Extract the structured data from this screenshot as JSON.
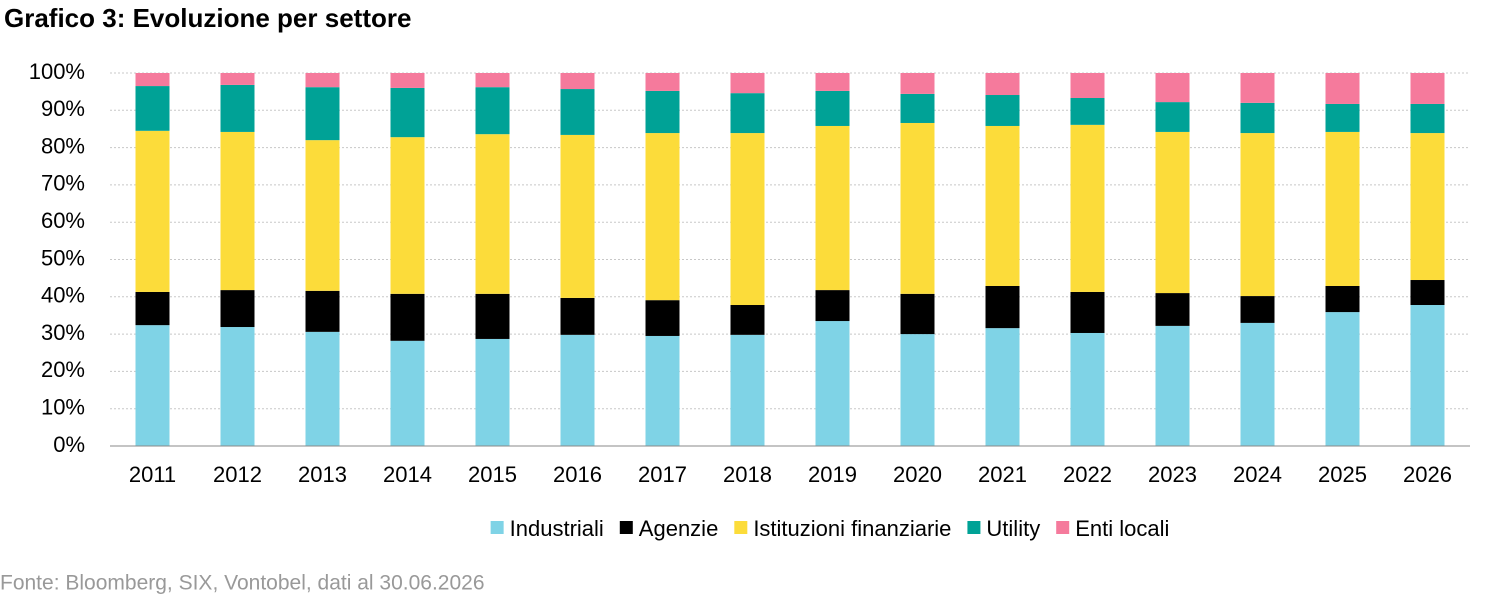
{
  "chart_data": {
    "type": "stacked_bar",
    "title": "Grafico 3: Evoluzione per settore",
    "source": "Fonte: Bloomberg, SIX, Vontobel, dati al 30.06.2026",
    "categories": [
      "2011",
      "2012",
      "2013",
      "2014",
      "2015",
      "2016",
      "2017",
      "2018",
      "2019",
      "2020",
      "2021",
      "2022",
      "2023",
      "2024",
      "2025",
      "2026"
    ],
    "series": [
      {
        "name": "Industriali",
        "color": "#7fd3e6",
        "values": [
          32.4,
          31.9,
          30.6,
          28.2,
          28.7,
          29.8,
          29.5,
          29.8,
          33.5,
          30.0,
          31.6,
          30.3,
          32.2,
          33.0,
          35.9,
          37.8
        ]
      },
      {
        "name": "Agenzie",
        "color": "#000000",
        "values": [
          8.9,
          9.9,
          11.0,
          12.6,
          12.1,
          9.9,
          9.6,
          8.0,
          8.3,
          10.8,
          11.3,
          11.0,
          8.8,
          7.2,
          7.0,
          6.7
        ]
      },
      {
        "name": "Istituzioni finanziarie",
        "color": "#fcdc3a",
        "values": [
          43.2,
          42.4,
          40.4,
          42.0,
          42.8,
          43.7,
          44.8,
          46.1,
          44.0,
          45.8,
          42.9,
          44.8,
          43.2,
          43.7,
          41.3,
          39.4
        ]
      },
      {
        "name": "Utility",
        "color": "#00a296",
        "values": [
          12.0,
          12.6,
          14.2,
          13.2,
          12.6,
          12.3,
          11.3,
          10.7,
          9.4,
          7.8,
          8.3,
          7.2,
          8.0,
          8.1,
          7.5,
          7.8
        ]
      },
      {
        "name": "Enti locali",
        "color": "#f57a9c",
        "values": [
          3.5,
          3.2,
          3.8,
          4.0,
          3.8,
          4.3,
          4.8,
          5.4,
          4.8,
          5.6,
          5.9,
          6.7,
          7.8,
          8.0,
          8.3,
          8.3
        ]
      }
    ],
    "ylim": [
      0,
      100
    ],
    "yticks": [
      {
        "value": 0,
        "label": "0%"
      },
      {
        "value": 10,
        "label": "10%"
      },
      {
        "value": 20,
        "label": "20%"
      },
      {
        "value": 30,
        "label": "30%"
      },
      {
        "value": 40,
        "label": "40%"
      },
      {
        "value": 50,
        "label": "50%"
      },
      {
        "value": 60,
        "label": "60%"
      },
      {
        "value": 70,
        "label": "70%"
      },
      {
        "value": 80,
        "label": "80%"
      },
      {
        "value": 90,
        "label": "90%"
      },
      {
        "value": 100,
        "label": "100%"
      }
    ],
    "grid": true,
    "legend": "bottom"
  }
}
